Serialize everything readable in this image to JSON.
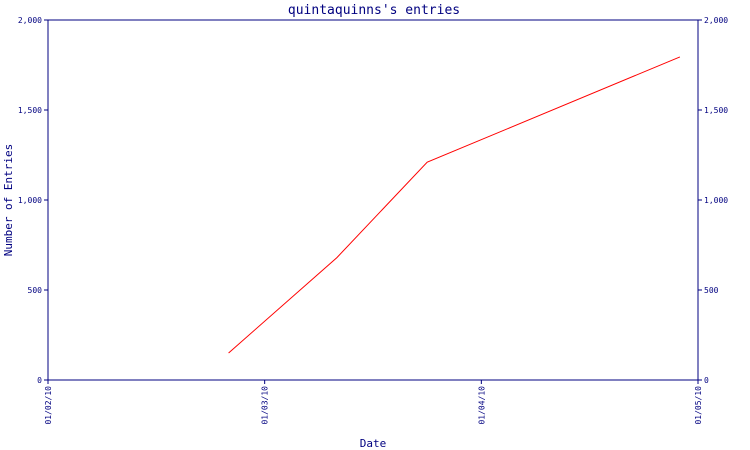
{
  "colors": {
    "axis": "#000080",
    "series": "#ff0000",
    "background": "#ffffff"
  },
  "chart_data": {
    "type": "line",
    "title": "quintaquinns's entries",
    "xlabel": "Date",
    "ylabel": "Number of Entries",
    "xlim": [
      "2010-01-02",
      "2010-01-05"
    ],
    "ylim": [
      0,
      2000
    ],
    "x_ticks": [
      "2010-01-02",
      "2010-01-03",
      "2010-01-04",
      "2010-01-05"
    ],
    "x_tick_labels": [
      "01/02/10",
      "01/03/10",
      "01/04/10",
      "01/05/10"
    ],
    "y_ticks": [
      0,
      500,
      1000,
      1500,
      2000
    ],
    "y_tick_labels": [
      "0",
      "500",
      "1,000",
      "1,500",
      "2,000"
    ],
    "y_axis_both_sides": true,
    "grid": false,
    "legend": "none",
    "series": [
      {
        "x": [
          "2010-01-02T20:00",
          "2010-01-03T08:00",
          "2010-01-03T18:00",
          "2010-01-04T22:00"
        ],
        "values": [
          150,
          680,
          1210,
          1795
        ]
      }
    ]
  }
}
